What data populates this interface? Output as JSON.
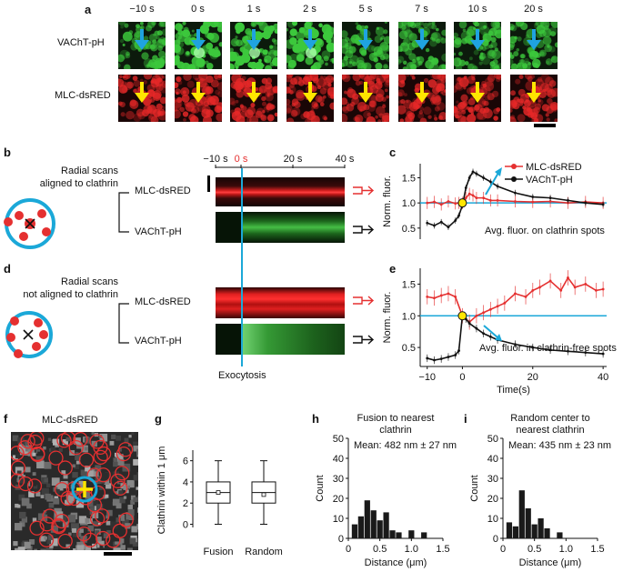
{
  "panel_labels": {
    "a": "a",
    "b": "b",
    "c": "c",
    "d": "d",
    "e": "e",
    "f": "f",
    "g": "g",
    "h": "h",
    "i": "i"
  },
  "panel_a": {
    "timepoints": [
      "−10 s",
      "0 s",
      "1 s",
      "2 s",
      "5 s",
      "7 s",
      "10 s",
      "20 s"
    ],
    "row_labels": [
      "VAChT-pH",
      "MLC-dsRED"
    ],
    "colors": {
      "arrow_top": "#1fa3e0",
      "arrow_bottom": "#ffe600"
    }
  },
  "panel_b": {
    "description": [
      "Radial scans",
      "aligned to clathrin"
    ],
    "channels": [
      "MLC-dsRED",
      "VAChT-pH"
    ],
    "time_ticks": [
      "−10 s",
      "0 s",
      "20 s",
      "40 s"
    ]
  },
  "panel_d": {
    "description": [
      "Radial scans",
      "not aligned to clathrin"
    ],
    "channels": [
      "MLC-dsRED",
      "VAChT-pH"
    ],
    "event_label": "Exocytosis"
  },
  "chart_data": [
    {
      "id": "c",
      "type": "line",
      "legend": [
        "MLC-dsRED",
        "VAChT-pH"
      ],
      "ylabel": "Norm. fluor.",
      "annotation": "Avg. fluor. on clathrin spots",
      "yticks": [
        "0.5",
        "1.0",
        "1.5"
      ],
      "xlim": [
        -12,
        41
      ],
      "ylim": [
        0.28,
        1.78
      ],
      "series": [
        {
          "name": "MLC-dsRED",
          "color": "#e53030",
          "x": [
            -10,
            -8,
            -6,
            -4,
            -2,
            -1,
            0,
            1,
            2,
            3,
            4,
            6,
            8,
            10,
            15,
            20,
            25,
            30,
            35,
            40
          ],
          "y": [
            1.0,
            1.02,
            0.97,
            1.03,
            0.99,
            1.0,
            1.0,
            1.1,
            1.18,
            1.15,
            1.1,
            1.1,
            1.05,
            1.05,
            1.03,
            1.02,
            1.03,
            1.0,
            1.02,
            1.0
          ]
        },
        {
          "name": "VAChT-pH",
          "color": "#111111",
          "x": [
            -10,
            -8,
            -6,
            -4,
            -2,
            -1,
            0,
            1,
            2,
            3,
            4,
            6,
            8,
            10,
            15,
            20,
            25,
            30,
            35,
            40
          ],
          "y": [
            0.6,
            0.55,
            0.62,
            0.52,
            0.65,
            0.75,
            0.95,
            1.3,
            1.5,
            1.62,
            1.58,
            1.5,
            1.42,
            1.33,
            1.2,
            1.12,
            1.1,
            1.05,
            1.0,
            0.97
          ]
        }
      ]
    },
    {
      "id": "e",
      "type": "line",
      "ylabel": "Norm. fluor.",
      "xlabel": "Time(s)",
      "annotation": "Avg. fluor. in clathrin-free spots",
      "yticks": [
        "0.5",
        "1.0",
        "1.5"
      ],
      "xticks": [
        "−10",
        "0",
        "20",
        "40"
      ],
      "xlim": [
        -12,
        41
      ],
      "ylim": [
        0.2,
        1.75
      ],
      "series": [
        {
          "name": "MLC-dsRED",
          "color": "#e53030",
          "x": [
            -10,
            -8,
            -6,
            -4,
            -2,
            0,
            2,
            4,
            6,
            8,
            10,
            12,
            15,
            18,
            20,
            22,
            25,
            28,
            30,
            32,
            35,
            38,
            40
          ],
          "y": [
            1.3,
            1.28,
            1.32,
            1.35,
            1.3,
            1.0,
            0.9,
            1.0,
            1.05,
            1.1,
            1.15,
            1.2,
            1.35,
            1.3,
            1.4,
            1.45,
            1.55,
            1.4,
            1.6,
            1.45,
            1.5,
            1.4,
            1.42
          ]
        },
        {
          "name": "VAChT-pH",
          "color": "#111111",
          "x": [
            -10,
            -8,
            -6,
            -4,
            -2,
            -1,
            0,
            1,
            2,
            4,
            6,
            8,
            10,
            15,
            20,
            25,
            30,
            35,
            40
          ],
          "y": [
            0.33,
            0.3,
            0.32,
            0.35,
            0.38,
            0.45,
            1.0,
            0.95,
            0.88,
            0.8,
            0.72,
            0.67,
            0.62,
            0.55,
            0.5,
            0.46,
            0.44,
            0.42,
            0.4
          ]
        }
      ]
    },
    {
      "id": "g",
      "type": "box",
      "ylabel": "Clathrin within 1 μm",
      "categories": [
        "Fusion",
        "Random"
      ],
      "yticks": [
        "0",
        "2",
        "4",
        "6"
      ],
      "ylim": [
        -0.3,
        7
      ],
      "boxes": [
        {
          "min": 0,
          "q1": 2,
          "median": 3,
          "q3": 4,
          "max": 6,
          "mean": 3.0
        },
        {
          "min": 0,
          "q1": 2,
          "median": 3,
          "q3": 4,
          "max": 6,
          "mean": 2.8
        }
      ]
    },
    {
      "id": "h",
      "type": "bar",
      "title": [
        "Fusion to nearest",
        "clathrin"
      ],
      "mean_text": "Mean: 482 nm ± 27 nm",
      "xlabel": "Distance (μm)",
      "ylabel": "Count",
      "xticks": [
        "0",
        "0.5",
        "1.0",
        "1.5"
      ],
      "yticks": [
        "0",
        "10",
        "20",
        "30",
        "40",
        "50"
      ],
      "xlim": [
        0,
        1.5
      ],
      "ylim": [
        0,
        50
      ],
      "bin_width": 0.1,
      "bins": [
        0.1,
        0.2,
        0.3,
        0.4,
        0.5,
        0.6,
        0.7,
        0.8,
        0.9,
        1.0,
        1.1,
        1.2
      ],
      "values": [
        7,
        11,
        19,
        14,
        9,
        13,
        4,
        3,
        0,
        4,
        0,
        3
      ]
    },
    {
      "id": "i",
      "type": "bar",
      "title": [
        "Random center to",
        "nearest clathrin"
      ],
      "mean_text": "Mean: 435 nm ± 23 nm",
      "xlabel": "Distance (μm)",
      "ylabel": "Count",
      "xticks": [
        "0",
        "0.5",
        "1.0",
        "1.5"
      ],
      "yticks": [
        "0",
        "10",
        "20",
        "30",
        "40",
        "50"
      ],
      "xlim": [
        0,
        1.5
      ],
      "ylim": [
        0,
        50
      ],
      "bin_width": 0.1,
      "bins": [
        0.1,
        0.2,
        0.3,
        0.4,
        0.5,
        0.6,
        0.7,
        0.8,
        0.9
      ],
      "values": [
        8,
        6,
        24,
        15,
        7,
        10,
        5,
        0,
        3
      ]
    }
  ],
  "panel_f": {
    "title": "MLC-dsRED"
  },
  "colors": {
    "cyan": "#1ba8d8",
    "red": "#e53030",
    "yellow": "#ffe600"
  }
}
